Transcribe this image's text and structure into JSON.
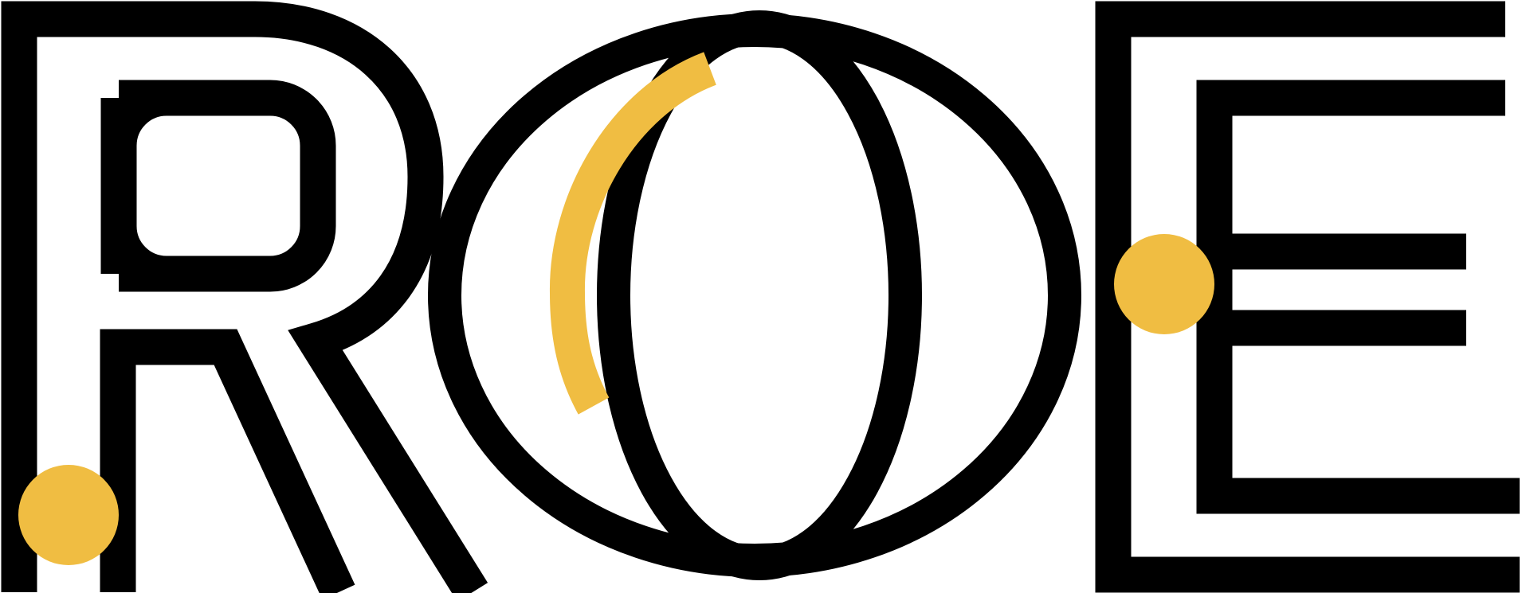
{
  "logo": {
    "text": "ROE",
    "colors": {
      "ink": "#000000",
      "accent": "#f0bd42",
      "background": "#ffffff"
    }
  }
}
